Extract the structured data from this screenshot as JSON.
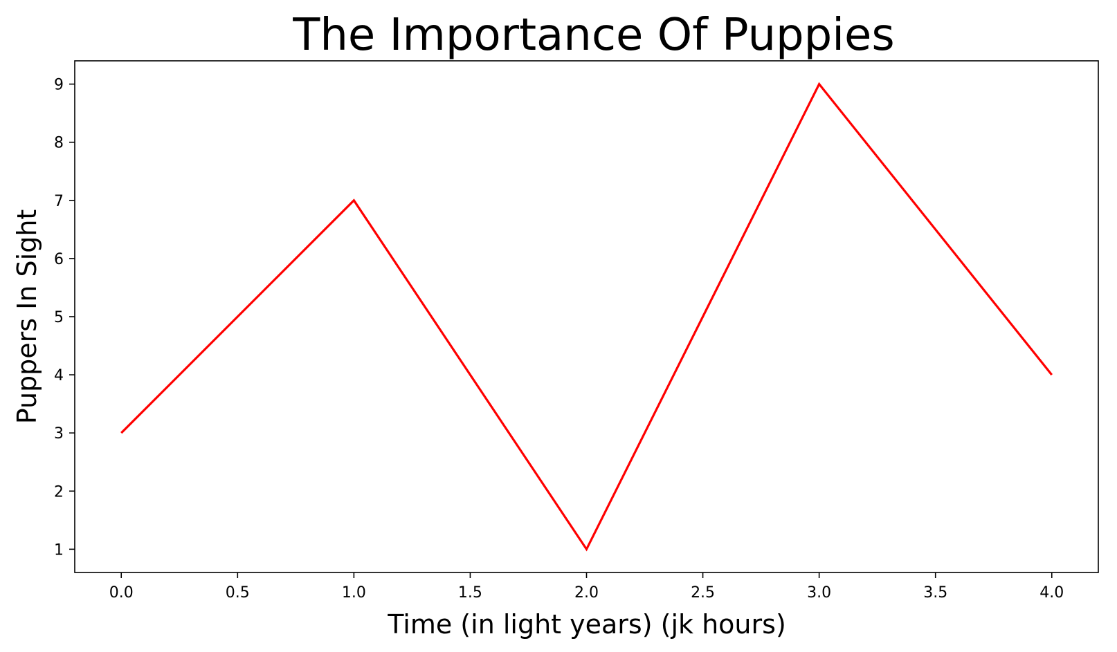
{
  "chart_data": {
    "type": "line",
    "title": "The Importance Of Puppies",
    "xlabel": "Time (in light years) (jk hours)",
    "ylabel": "Puppers In Sight",
    "x": [
      0,
      1,
      2,
      3,
      4
    ],
    "series": [
      {
        "values": [
          3,
          7,
          1,
          9,
          4
        ],
        "color": "#ff0000"
      }
    ],
    "xlim": [
      -0.2,
      4.2
    ],
    "ylim": [
      0.6,
      9.4
    ],
    "xticks": [
      "0.0",
      "0.5",
      "1.0",
      "1.5",
      "2.0",
      "2.5",
      "3.0",
      "3.5",
      "4.0"
    ],
    "yticks": [
      "1",
      "2",
      "3",
      "4",
      "5",
      "6",
      "7",
      "8",
      "9"
    ],
    "grid": false,
    "legend": "none"
  }
}
